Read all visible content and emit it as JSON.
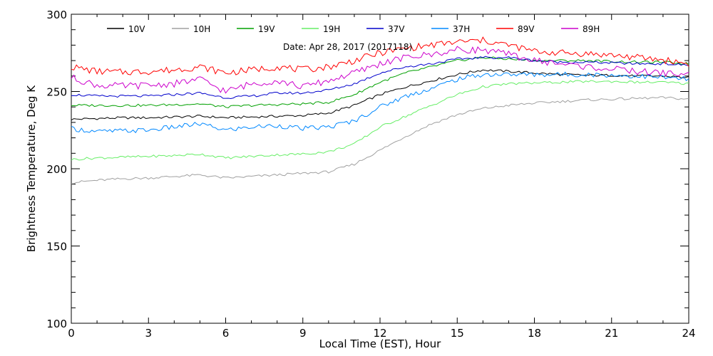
{
  "chart_data": {
    "type": "line",
    "xlabel": "Local Time (EST), Hour",
    "ylabel": "Brightness Temperature, Deg K",
    "annotation": "Date: Apr 28, 2017 (2017118)",
    "xlim": [
      0,
      24
    ],
    "ylim": [
      100,
      300
    ],
    "xticks": [
      0,
      3,
      6,
      9,
      12,
      15,
      18,
      21,
      24
    ],
    "yticks": [
      100,
      150,
      200,
      250,
      300
    ],
    "grid": false,
    "legend_position": "top",
    "x": [
      0,
      1,
      2,
      3,
      4,
      5,
      6,
      7,
      8,
      9,
      10,
      11,
      12,
      13,
      14,
      15,
      16,
      17,
      18,
      19,
      20,
      21,
      22,
      23,
      24
    ],
    "series": [
      {
        "name": "10V",
        "color": "#000000",
        "values": [
          232,
          232.5,
          233,
          233,
          233.5,
          234,
          233,
          233.5,
          234,
          234.5,
          236,
          241,
          248,
          253,
          257,
          261,
          264,
          263,
          262,
          261,
          260.5,
          260.5,
          260,
          260,
          259
        ]
      },
      {
        "name": "10H",
        "color": "#a0a0a0",
        "values": [
          191,
          192.5,
          193.5,
          194,
          195,
          196,
          194,
          195,
          196,
          197,
          198,
          203,
          212,
          221,
          229,
          235,
          239,
          241,
          242.5,
          243.5,
          244.5,
          245,
          245.5,
          246,
          245
        ]
      },
      {
        "name": "19V",
        "color": "#00a000",
        "values": [
          241,
          241,
          241,
          241,
          241.5,
          242,
          240,
          241,
          241.5,
          242,
          243,
          248,
          256,
          262,
          266,
          270,
          272,
          271,
          270,
          270,
          270,
          269.5,
          269,
          269,
          268
        ]
      },
      {
        "name": "19H",
        "color": "#66ee66",
        "values": [
          206,
          207,
          207.5,
          208,
          208.5,
          209.5,
          207,
          208,
          209,
          209.5,
          211,
          216,
          227,
          234,
          241,
          248,
          253,
          255,
          255.5,
          256,
          256.5,
          256.5,
          256,
          256,
          255
        ]
      },
      {
        "name": "37V",
        "color": "#0000cc",
        "values": [
          248,
          247,
          247,
          247,
          248,
          249,
          246,
          247,
          249,
          249,
          251,
          255,
          262,
          266,
          268,
          271,
          272,
          272,
          270,
          269,
          269,
          268.5,
          268,
          268,
          267
        ]
      },
      {
        "name": "37H",
        "color": "#0088ff",
        "values": [
          226,
          224,
          224.5,
          225,
          227,
          229,
          225,
          227,
          228,
          226,
          227,
          231,
          240,
          247,
          252,
          258,
          261,
          261,
          261,
          261,
          261,
          260.5,
          260,
          259,
          258
        ]
      },
      {
        "name": "89V",
        "color": "#ff0000",
        "values": [
          266,
          263,
          262.5,
          263,
          264,
          266,
          262,
          264,
          266,
          264,
          266,
          270,
          275,
          278,
          280,
          282,
          283,
          280,
          276,
          275,
          274.5,
          273.5,
          272,
          270.5,
          268
        ]
      },
      {
        "name": "89H",
        "color": "#cc00cc",
        "values": [
          259,
          254,
          253.5,
          254,
          255,
          258,
          250,
          255,
          257,
          253,
          257,
          262,
          268,
          272,
          274,
          277,
          277,
          274,
          270,
          268,
          266,
          264.5,
          263,
          262,
          261
        ]
      }
    ]
  }
}
